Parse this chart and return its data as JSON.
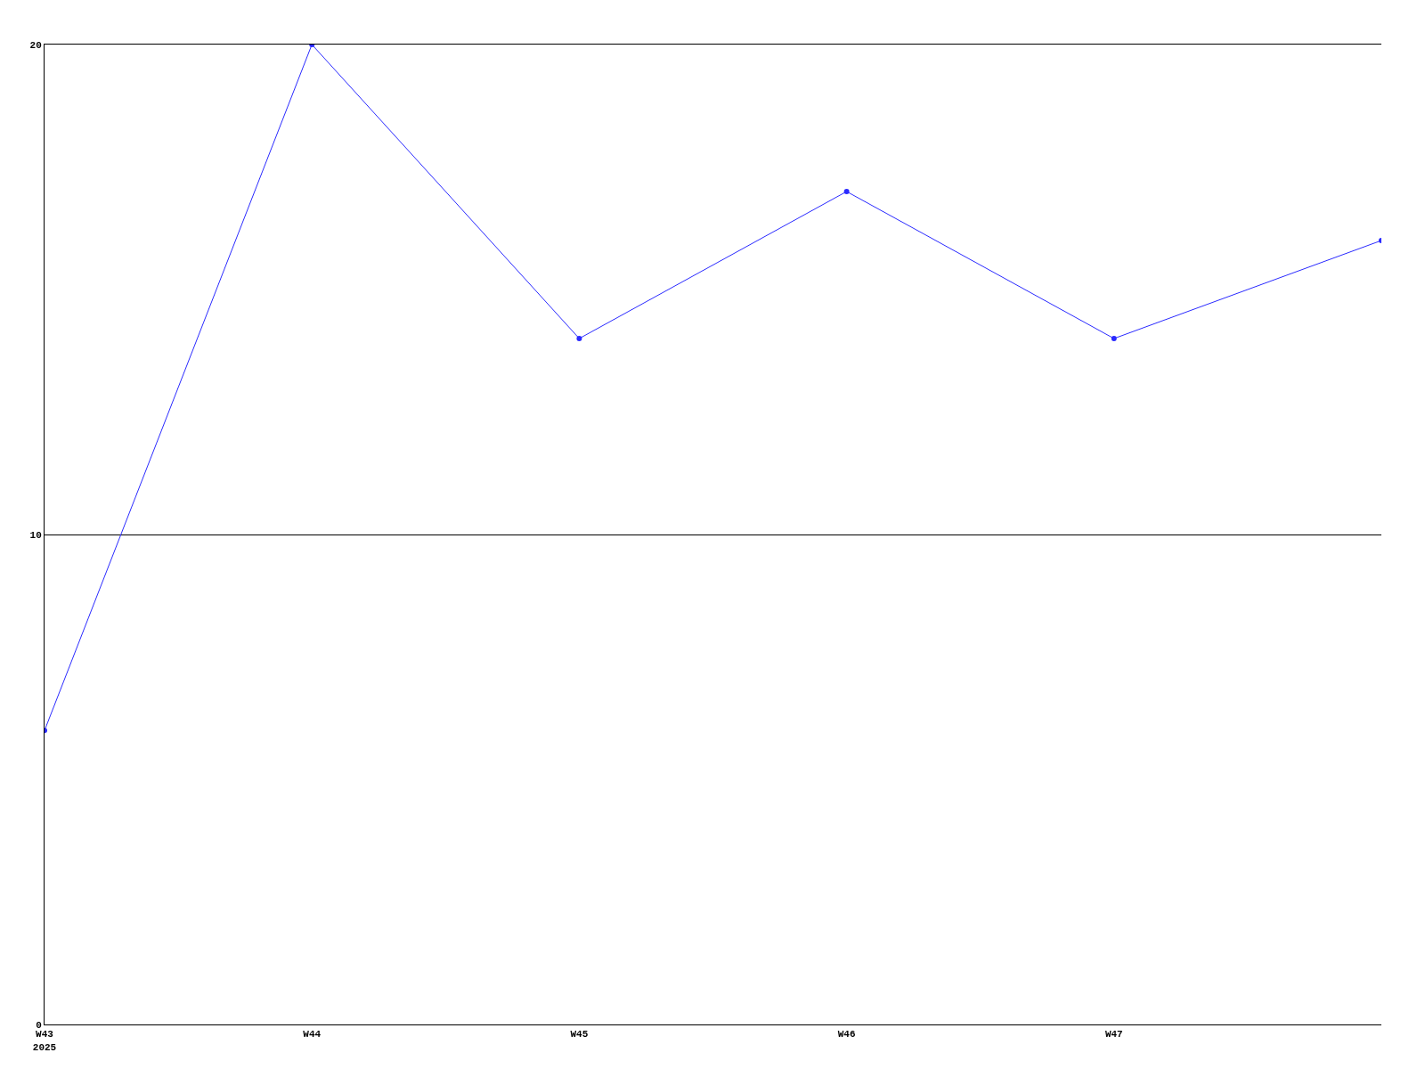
{
  "chart_data": {
    "type": "line",
    "categories": [
      "W43\n2025",
      "W44",
      "W45",
      "W46",
      "W47",
      null
    ],
    "series": [
      {
        "color": "#2a2aff",
        "values": [
          6,
          20,
          14,
          17,
          14,
          16
        ]
      }
    ],
    "ylim": [
      0,
      20
    ],
    "yticks": [
      0,
      10,
      20
    ],
    "grid": "y",
    "marker": "circle",
    "line_style": "solid",
    "legend": false
  }
}
